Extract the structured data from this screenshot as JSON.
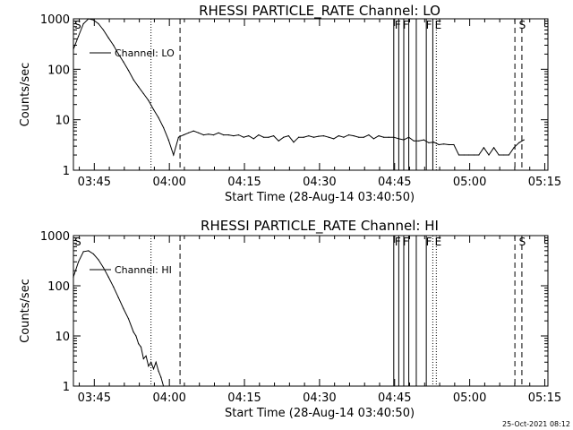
{
  "timestamp": "25-Oct-2021 08:12",
  "chart_data": [
    {
      "type": "line",
      "title": "RHESSI PARTICLE_RATE Channel: LO",
      "xlabel": "Start Time (28-Aug-14 03:40:50)",
      "ylabel": "Counts/sec",
      "x_unit": "minutes after 03:40:50 start",
      "x_tick_labels": [
        "03:45",
        "04:00",
        "04:15",
        "04:30",
        "04:45",
        "05:00",
        "05:15"
      ],
      "y_scale": "log",
      "ylim": [
        1,
        1000
      ],
      "y_tick_labels": [
        "1",
        "10",
        "100",
        "1000"
      ],
      "legend": {
        "label": "Channel: LO",
        "position": "top-left"
      },
      "flag_labels": [
        {
          "text": "S",
          "x": 0.2
        },
        {
          "text": "F",
          "x": 64.2
        },
        {
          "text": "F",
          "x": 65.8
        },
        {
          "text": "F",
          "x": 70.4
        },
        {
          "text": "E",
          "x": 72.2
        },
        {
          "text": "S",
          "x": 89.0
        }
      ],
      "series": [
        {
          "name": "Channel: LO",
          "x": [
            0,
            1,
            2,
            3,
            4,
            5,
            6,
            7,
            8,
            9,
            10,
            11,
            12,
            13,
            14,
            15,
            16,
            17,
            18,
            19,
            20,
            21,
            22,
            23,
            24,
            25,
            26,
            27,
            28,
            29,
            30,
            31,
            32,
            33,
            34,
            35,
            36,
            37,
            38,
            39,
            40,
            41,
            42,
            43,
            44,
            45,
            46,
            47,
            48,
            49,
            50,
            51,
            52,
            53,
            54,
            55,
            56,
            57,
            58,
            59,
            60,
            61,
            62,
            63,
            64,
            65,
            66,
            67,
            68,
            69,
            70,
            71,
            72,
            73,
            74,
            75,
            76,
            77,
            78,
            79,
            80,
            81,
            82,
            83,
            84,
            85,
            86,
            87,
            88,
            89,
            90
          ],
          "y": [
            250,
            450,
            800,
            1000,
            950,
            800,
            600,
            420,
            300,
            200,
            140,
            95,
            62,
            45,
            33,
            24,
            16,
            11,
            7,
            4,
            2,
            4.5,
            5,
            5.5,
            6,
            5.5,
            5,
            5.2,
            5,
            5.5,
            5,
            5,
            4.8,
            5,
            4.5,
            4.8,
            4.2,
            5,
            4.5,
            4.5,
            4.8,
            3.8,
            4.5,
            4.8,
            3.6,
            4.5,
            4.5,
            4.8,
            4.5,
            4.7,
            4.8,
            4.5,
            4.2,
            4.8,
            4.5,
            5,
            4.8,
            4.5,
            4.5,
            5,
            4.2,
            4.8,
            4.5,
            4.5,
            4.5,
            4.2,
            4,
            4.5,
            3.8,
            3.8,
            4,
            3.5,
            3.6,
            3.2,
            3.3,
            3.2,
            3.2,
            2,
            2,
            2,
            2,
            2,
            2.8,
            2,
            2.8,
            2,
            2,
            2,
            2.8,
            3.5,
            4
          ]
        }
      ],
      "markers": [
        {
          "x": 15.5,
          "style": "dotted"
        },
        {
          "x": 21.3,
          "style": "dashed"
        },
        {
          "x": 64.0,
          "style": "solid"
        },
        {
          "x": 65.0,
          "style": "solid"
        },
        {
          "x": 66.0,
          "style": "solid"
        },
        {
          "x": 67.0,
          "style": "solid"
        },
        {
          "x": 68.5,
          "style": "solid"
        },
        {
          "x": 70.5,
          "style": "solid"
        },
        {
          "x": 71.8,
          "style": "solid"
        },
        {
          "x": 72.5,
          "style": "dotted"
        },
        {
          "x": 88.2,
          "style": "dashed"
        },
        {
          "x": 89.6,
          "style": "dashed"
        }
      ]
    },
    {
      "type": "line",
      "title": "RHESSI PARTICLE_RATE Channel: HI",
      "xlabel": "Start Time (28-Aug-14 03:40:50)",
      "ylabel": "Counts/sec",
      "x_unit": "minutes after 03:40:50 start",
      "x_tick_labels": [
        "03:45",
        "04:00",
        "04:15",
        "04:30",
        "04:45",
        "05:00",
        "05:15"
      ],
      "y_scale": "log",
      "ylim": [
        1,
        1000
      ],
      "y_tick_labels": [
        "1",
        "10",
        "100",
        "1000"
      ],
      "legend": {
        "label": "Channel: HI",
        "position": "top-left"
      },
      "flag_labels": [
        {
          "text": "S",
          "x": 0.2
        },
        {
          "text": "F",
          "x": 64.2
        },
        {
          "text": "F",
          "x": 65.8
        },
        {
          "text": "F",
          "x": 70.4
        },
        {
          "text": "E",
          "x": 72.2
        },
        {
          "text": "S",
          "x": 89.0
        }
      ],
      "series": [
        {
          "name": "Channel: HI",
          "x": [
            0,
            1,
            2,
            3,
            4,
            5,
            6,
            7,
            8,
            9,
            10,
            11,
            12,
            12.5,
            13,
            13.5,
            14,
            14.5,
            15,
            15.5,
            16,
            16.5,
            17,
            17.5,
            18
          ],
          "y": [
            150,
            300,
            480,
            500,
            430,
            330,
            230,
            150,
            95,
            58,
            35,
            22,
            12,
            10,
            7,
            6,
            3.5,
            4,
            2.5,
            3,
            2.2,
            3,
            2,
            1.5,
            1
          ]
        }
      ],
      "markers": [
        {
          "x": 15.5,
          "style": "dotted"
        },
        {
          "x": 21.3,
          "style": "dashed"
        },
        {
          "x": 64.0,
          "style": "solid"
        },
        {
          "x": 65.0,
          "style": "solid"
        },
        {
          "x": 66.0,
          "style": "solid"
        },
        {
          "x": 67.0,
          "style": "solid"
        },
        {
          "x": 68.5,
          "style": "solid"
        },
        {
          "x": 70.5,
          "style": "solid"
        },
        {
          "x": 71.8,
          "style": "dotted"
        },
        {
          "x": 72.5,
          "style": "dotted"
        },
        {
          "x": 88.2,
          "style": "dashed"
        },
        {
          "x": 89.6,
          "style": "dashed"
        }
      ]
    }
  ]
}
